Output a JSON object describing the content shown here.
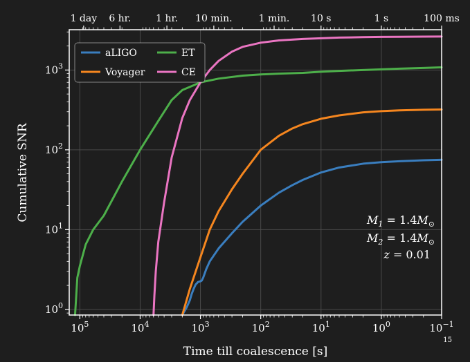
{
  "chart_data": {
    "type": "line",
    "xlabel": "Time till coalescence [s]",
    "ylabel": "Cumulative SNR",
    "xscale": "log",
    "xaxis_inverted": true,
    "yscale": "log",
    "xlim": [
      150000,
      0.1
    ],
    "ylim": [
      0.85,
      3200
    ],
    "grid": true,
    "legend_position": "top-left",
    "x_ticks": [
      {
        "value": 100000,
        "base": "10",
        "exp": "5"
      },
      {
        "value": 10000,
        "base": "10",
        "exp": "4"
      },
      {
        "value": 1000,
        "base": "10",
        "exp": "3"
      },
      {
        "value": 100,
        "base": "10",
        "exp": "2"
      },
      {
        "value": 10,
        "base": "10",
        "exp": "1"
      },
      {
        "value": 1,
        "base": "10",
        "exp": "0"
      },
      {
        "value": 0.1,
        "base": "10",
        "exp": "−1"
      }
    ],
    "y_ticks": [
      {
        "value": 1,
        "base": "10",
        "exp": "0"
      },
      {
        "value": 10,
        "base": "10",
        "exp": "1"
      },
      {
        "value": 100,
        "base": "10",
        "exp": "2"
      },
      {
        "value": 1000,
        "base": "10",
        "exp": "3"
      }
    ],
    "top_ticks": [
      {
        "value": 86400,
        "label": "1 day"
      },
      {
        "value": 21600,
        "label": "6 hr."
      },
      {
        "value": 3600,
        "label": "1 hr."
      },
      {
        "value": 600,
        "label": "10 min."
      },
      {
        "value": 60,
        "label": "1 min."
      },
      {
        "value": 10,
        "label": "10 s"
      },
      {
        "value": 1,
        "label": "1 s"
      },
      {
        "value": 0.1,
        "label": "100 ms"
      }
    ],
    "series": [
      {
        "name": "aLIGO",
        "color": "#3a7ebf",
        "x": [
          2000,
          1700,
          1500,
          1400,
          1300,
          1200,
          1100,
          1000,
          950,
          900,
          800,
          700,
          500,
          300,
          200,
          100,
          50,
          30,
          20,
          10,
          5,
          2,
          1,
          0.5,
          0.2,
          0.1
        ],
        "y": [
          0.85,
          1.05,
          1.3,
          1.55,
          1.8,
          2.05,
          2.2,
          2.25,
          2.3,
          2.5,
          3.2,
          4.0,
          5.8,
          9.0,
          12.5,
          20,
          29,
          36,
          42,
          52,
          60,
          67,
          70,
          72,
          74,
          75
        ]
      },
      {
        "name": "Voyager",
        "color": "#f5861f",
        "x": [
          2000,
          1500,
          1000,
          700,
          500,
          300,
          200,
          100,
          50,
          30,
          20,
          10,
          5,
          2,
          1,
          0.5,
          0.2,
          0.1
        ],
        "y": [
          0.85,
          1.8,
          4.5,
          10,
          17,
          32,
          50,
          100,
          150,
          185,
          210,
          245,
          270,
          295,
          305,
          312,
          318,
          320
        ]
      },
      {
        "name": "ET",
        "color": "#4daf4a",
        "x": [
          120000,
          110000,
          100000,
          80000,
          60000,
          40000,
          20000,
          10000,
          5000,
          3000,
          2000,
          1000,
          500,
          200,
          100,
          50,
          20,
          10,
          5,
          2,
          1,
          0.5,
          0.2,
          0.1
        ],
        "y": [
          0.85,
          2.5,
          3.5,
          6.5,
          10,
          15,
          40,
          100,
          230,
          420,
          560,
          700,
          780,
          850,
          880,
          900,
          920,
          950,
          975,
          1000,
          1020,
          1040,
          1060,
          1080
        ]
      },
      {
        "name": "CE",
        "color": "#ea75c2",
        "x": [
          6000,
          5800,
          5500,
          5000,
          4000,
          3000,
          2000,
          1500,
          1000,
          700,
          500,
          300,
          200,
          100,
          50,
          20,
          10,
          5,
          2,
          1,
          0.5,
          0.2,
          0.1
        ],
        "y": [
          0.85,
          1.5,
          3,
          7,
          22,
          80,
          250,
          420,
          700,
          1000,
          1300,
          1700,
          1950,
          2200,
          2350,
          2450,
          2500,
          2550,
          2580,
          2600,
          2610,
          2620,
          2630
        ]
      }
    ],
    "annotations": {
      "m1_symbol": "M",
      "m1_sub": "1",
      "m1_rest": " = 1.4",
      "m2_symbol": "M",
      "m2_sub": "2",
      "m2_rest": " = 1.4",
      "mass_unit_symbol": "M",
      "mass_unit_sub": "⊙",
      "z_label": "z",
      "z_rest": " = 0.01"
    }
  },
  "page_number": "15",
  "colors": {
    "background": "#1e1e1e",
    "grid": "#4a4a4a",
    "frame": "#ffffff"
  }
}
